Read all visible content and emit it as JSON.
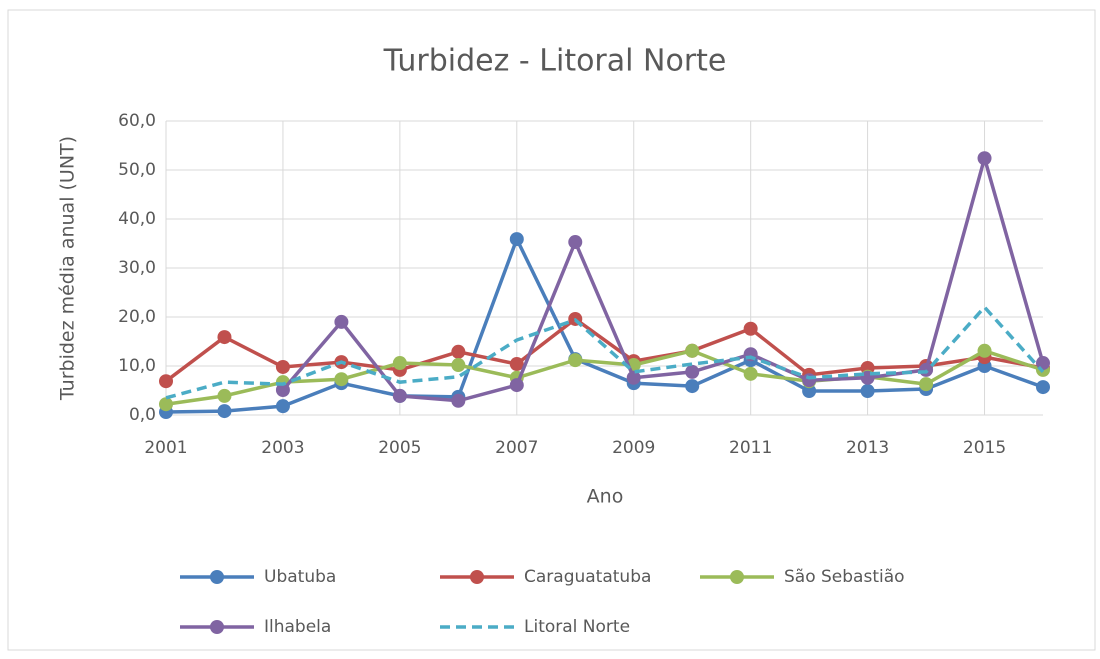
{
  "chart_data": {
    "type": "line",
    "title": "Turbidez - Litoral Norte",
    "x_label": "Ano",
    "y_label": "Turbidez média anual (UNT)",
    "x": [
      2001,
      2002,
      2003,
      2004,
      2005,
      2006,
      2007,
      2008,
      2009,
      2010,
      2011,
      2012,
      2013,
      2014,
      2015,
      2016
    ],
    "xlim": [
      2001,
      2016
    ],
    "xticks": [
      2001,
      2003,
      2005,
      2007,
      2009,
      2011,
      2013,
      2015
    ],
    "ylim": [
      0,
      60
    ],
    "yticks": [
      {
        "value": 0,
        "label": "0,0"
      },
      {
        "value": 10,
        "label": "10,0"
      },
      {
        "value": 20,
        "label": "20,0"
      },
      {
        "value": 30,
        "label": "30,0"
      },
      {
        "value": 40,
        "label": "40,0"
      },
      {
        "value": 50,
        "label": "50,0"
      },
      {
        "value": 60,
        "label": "60,0"
      }
    ],
    "grid": true,
    "series": [
      {
        "name": "Ubatuba",
        "color": "#4a7ebb",
        "style": "solid",
        "markers": true,
        "values": [
          0.6,
          0.8,
          1.8,
          6.5,
          3.9,
          3.7,
          35.9,
          11.4,
          6.5,
          5.9,
          11.2,
          4.9,
          4.9,
          5.3,
          10.0,
          5.7
        ]
      },
      {
        "name": "Caraguatatuba",
        "color": "#c0504d",
        "style": "solid",
        "markers": true,
        "values": [
          6.9,
          15.9,
          9.8,
          10.8,
          9.2,
          12.9,
          10.4,
          19.6,
          11.0,
          13.1,
          17.6,
          8.2,
          9.6,
          10.0,
          11.8,
          9.6
        ]
      },
      {
        "name": "São Sebastião",
        "color": "#9bbb59",
        "style": "solid",
        "markers": true,
        "values": [
          2.2,
          3.9,
          6.7,
          7.3,
          10.6,
          10.2,
          7.6,
          11.2,
          10.2,
          13.1,
          8.4,
          6.9,
          7.8,
          6.3,
          13.1,
          9.2
        ]
      },
      {
        "name": "Ilhabela",
        "color": "#8064a2",
        "style": "solid",
        "markers": true,
        "values": [
          null,
          null,
          5.1,
          19.0,
          3.9,
          2.9,
          6.1,
          35.3,
          7.6,
          8.8,
          12.4,
          7.1,
          7.6,
          9.2,
          52.4,
          10.6
        ]
      },
      {
        "name": "Litoral Norte",
        "color": "#4bacc6",
        "style": "dashed",
        "markers": false,
        "values": [
          3.5,
          6.7,
          6.3,
          10.8,
          6.7,
          7.8,
          15.3,
          19.4,
          8.8,
          10.4,
          11.8,
          7.6,
          8.4,
          8.8,
          22.0,
          8.8
        ]
      }
    ]
  }
}
